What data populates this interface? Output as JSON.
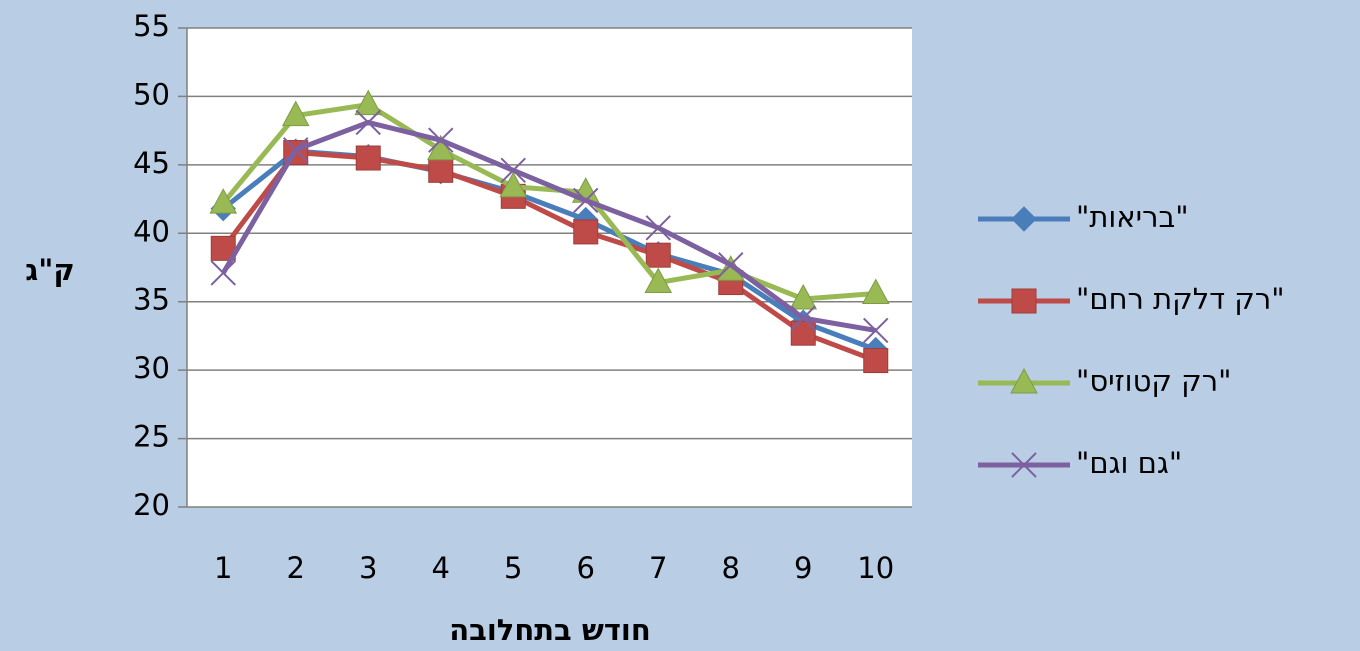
{
  "chart_data": {
    "type": "line",
    "categories": [
      "1",
      "2",
      "3",
      "4",
      "5",
      "6",
      "7",
      "8",
      "9",
      "10"
    ],
    "x_label": "חודש בתחלובה",
    "y_label": "ק\"ג",
    "ylim": [
      20,
      55
    ],
    "yticks": [
      20,
      25,
      30,
      35,
      40,
      45,
      50,
      55
    ],
    "grid": true,
    "legend": "right",
    "series": [
      {
        "name": "\"בריאות\"",
        "color": "#4a7ebb",
        "marker": "diamond",
        "values": [
          41.8,
          46,
          45.6,
          44.5,
          43,
          41,
          38.5,
          37,
          33.5,
          31.5
        ]
      },
      {
        "name": "\"רק דלקת רחם\"",
        "color": "#be4b48",
        "marker": "square",
        "values": [
          38.9,
          45.9,
          45.5,
          44.6,
          42.7,
          40.1,
          38.4,
          36.4,
          32.7,
          30.7
        ]
      },
      {
        "name": "\"רק קטוזיס\"",
        "color": "#98b954",
        "marker": "triangle",
        "values": [
          42.2,
          48.6,
          49.4,
          46.1,
          43.4,
          43,
          36.4,
          37.3,
          35.2,
          35.6
        ]
      },
      {
        "name": "\"גם וגם\"",
        "color": "#7d60a0",
        "marker": "x",
        "values": [
          37.1,
          46.1,
          48.1,
          46.8,
          44.6,
          42.4,
          40.4,
          37.7,
          33.8,
          32.9
        ]
      }
    ]
  }
}
